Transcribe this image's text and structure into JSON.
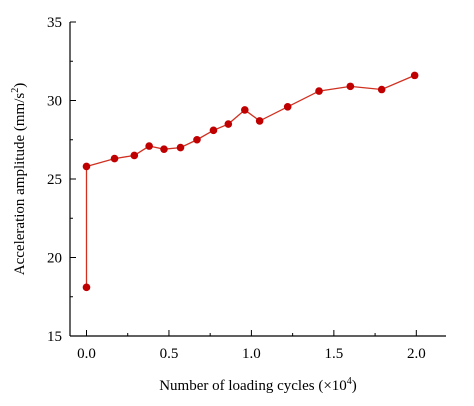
{
  "chart_data": {
    "type": "line",
    "title": "",
    "xlabel": "Number of loading cycles (×10",
    "xlabel_sup": "4",
    "xlabel_end": ")",
    "ylabel": "Acceleration amplitude (mm/s",
    "ylabel_sup": "2",
    "ylabel_end": ")",
    "xlim": [
      -0.1,
      2.18
    ],
    "ylim": [
      15,
      35
    ],
    "xticks": [
      0.0,
      0.5,
      1.0,
      1.5,
      2.0
    ],
    "xtick_labels": [
      "0.0",
      "0.5",
      "1.0",
      "1.5",
      "2.0"
    ],
    "yticks": [
      15,
      20,
      25,
      30,
      35
    ],
    "ytick_labels": [
      "15",
      "20",
      "25",
      "30",
      "35"
    ],
    "grid": false,
    "series": [
      {
        "color": "#c00000",
        "line_color": "#d03020",
        "x": [
          0.0,
          0.0,
          0.17,
          0.29,
          0.38,
          0.47,
          0.57,
          0.67,
          0.77,
          0.86,
          0.96,
          1.05,
          1.22,
          1.41,
          1.6,
          1.79,
          1.99
        ],
        "y": [
          18.1,
          25.8,
          26.3,
          26.5,
          27.1,
          26.9,
          27.0,
          27.5,
          28.1,
          28.5,
          29.4,
          28.7,
          29.6,
          30.6,
          30.9,
          30.7,
          31.6
        ]
      }
    ]
  }
}
